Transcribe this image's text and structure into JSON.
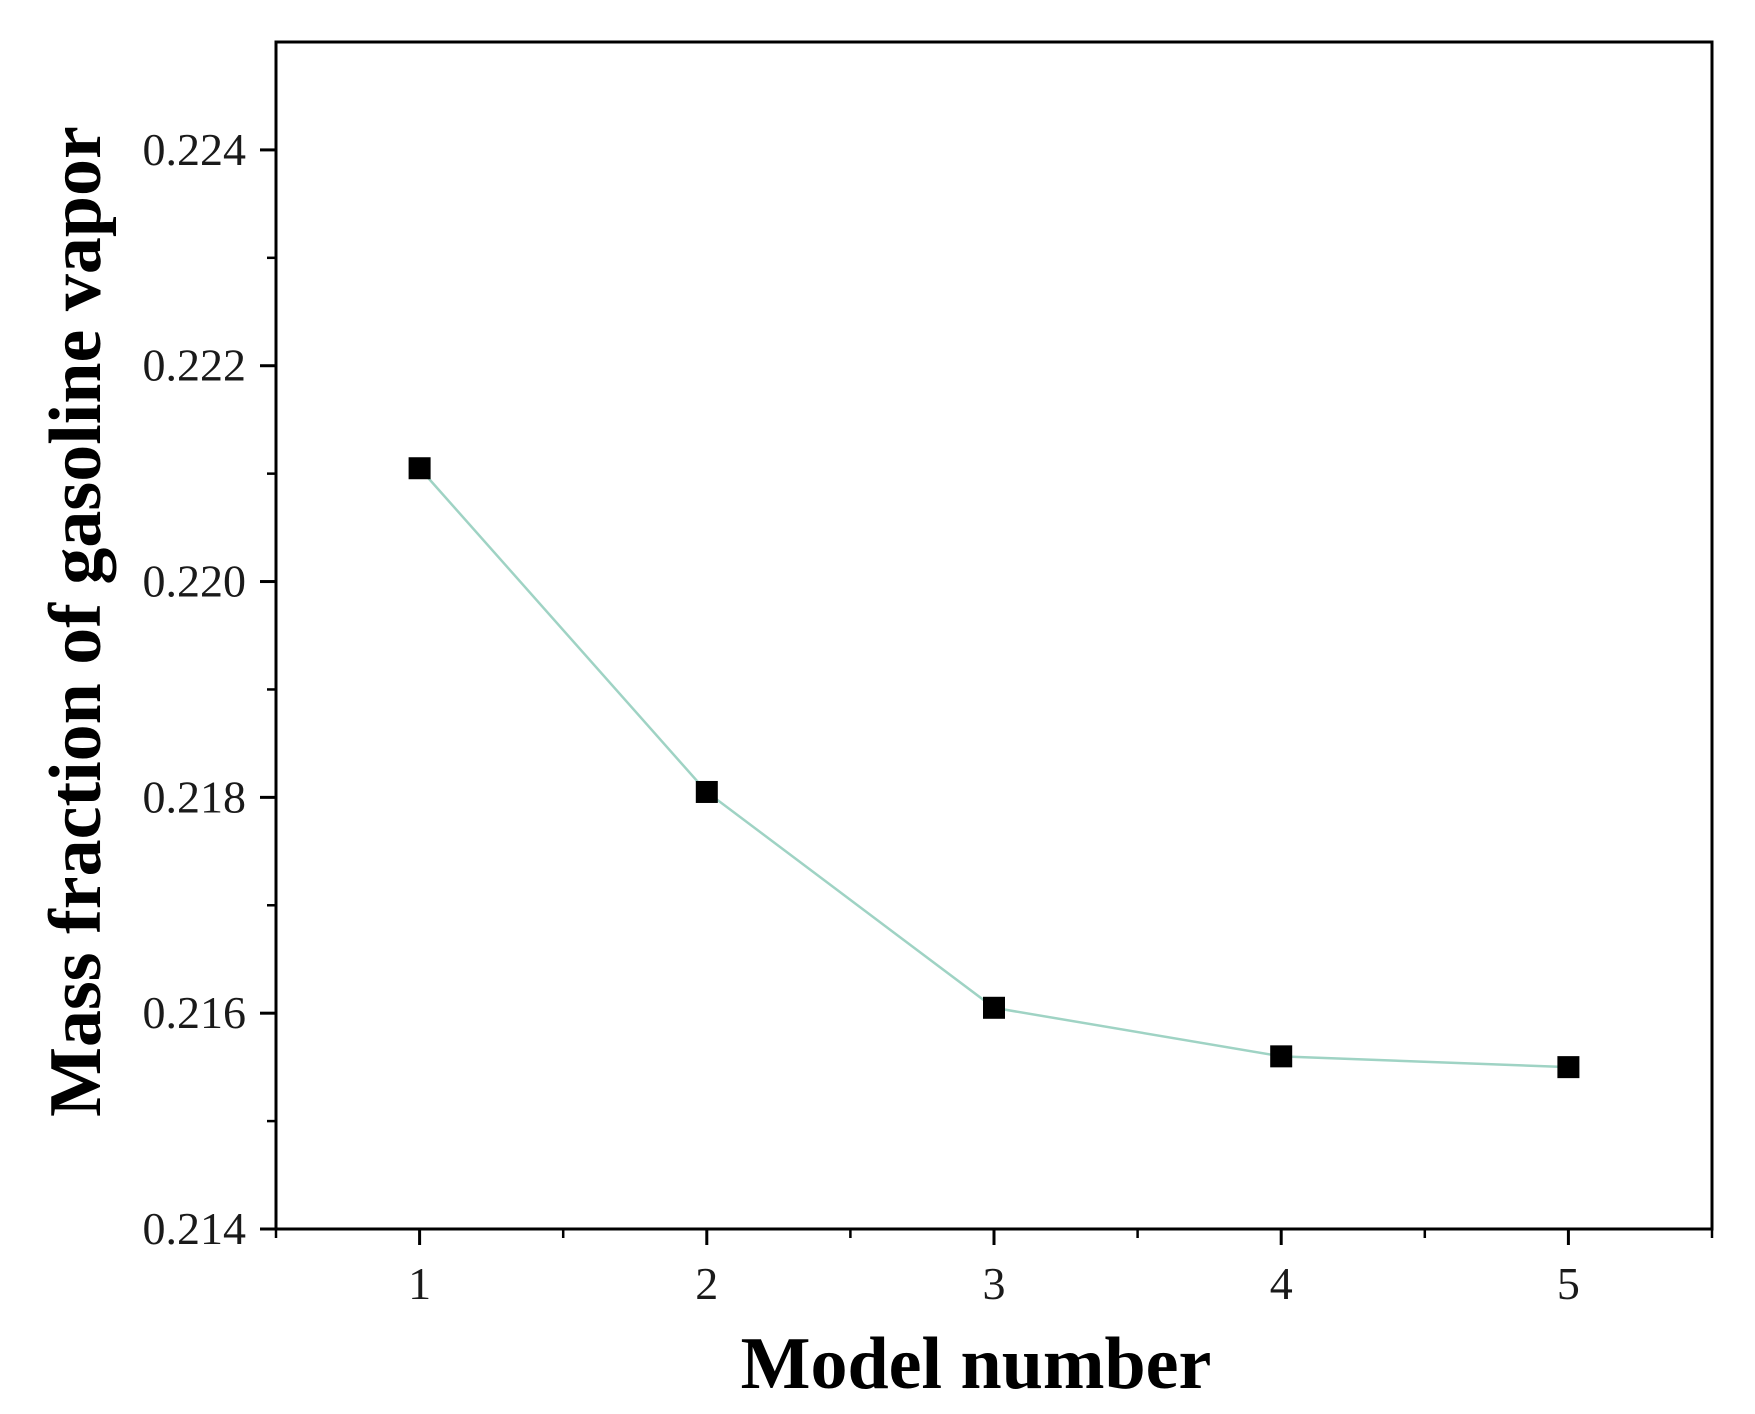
{
  "chart_data": {
    "type": "line",
    "xlabel": "Model number",
    "ylabel": "Mass fraction of gasoline vapor",
    "x": [
      1,
      2,
      3,
      4,
      5
    ],
    "series": [
      {
        "values": [
          0.22105,
          0.21805,
          0.21605,
          0.2156,
          0.2155
        ],
        "marker": "square",
        "marker_color": "#000000",
        "line_color": "#9fd3c4"
      }
    ],
    "xlim": [
      0.5,
      5.5
    ],
    "ylim": [
      0.214,
      0.225
    ],
    "x_ticks": [
      "1",
      "2",
      "3",
      "4",
      "5"
    ],
    "y_ticks": [
      "0.214",
      "0.216",
      "0.218",
      "0.220",
      "0.222",
      "0.224"
    ],
    "grid": false,
    "legend": "none"
  }
}
